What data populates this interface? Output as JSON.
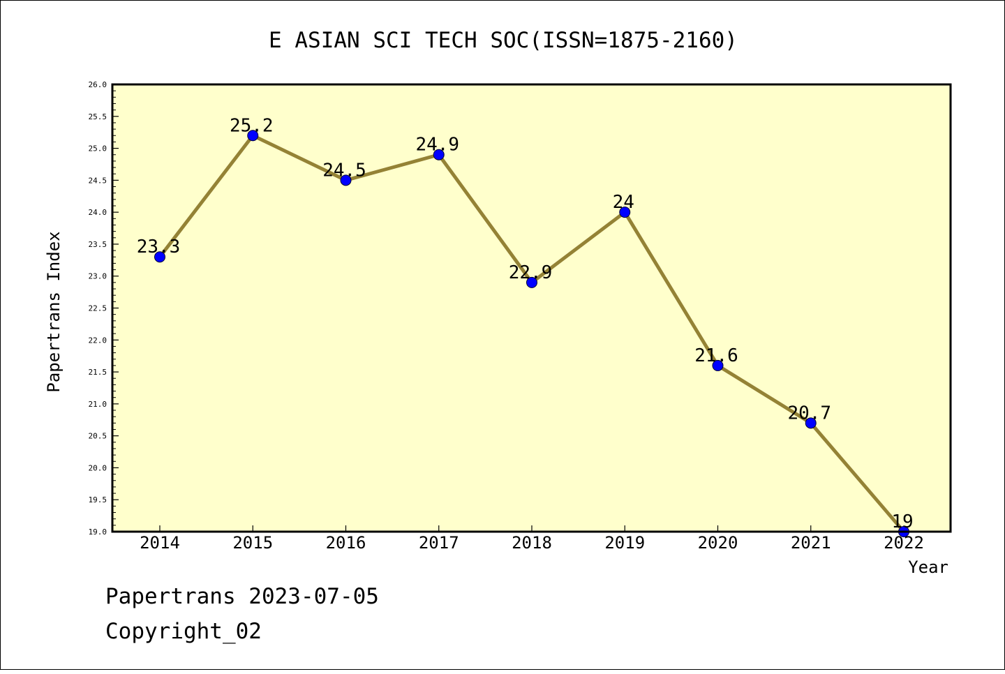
{
  "colors": {
    "plot_background": "#ffffcc",
    "line": "#948235",
    "marker": "#0000ff",
    "axis": "#000000",
    "page_background": "#ffffff"
  },
  "chart_data": {
    "type": "line",
    "title": "E ASIAN SCI TECH SOC(ISSN=1875-2160)",
    "xlabel": "Year",
    "ylabel": "Papertrans Index",
    "categories": [
      "2014",
      "2015",
      "2016",
      "2017",
      "2018",
      "2019",
      "2020",
      "2021",
      "2022"
    ],
    "series": [
      {
        "values": [
          23.3,
          25.2,
          24.5,
          24.9,
          22.9,
          24.0,
          21.6,
          20.7,
          19.0
        ],
        "data_labels": [
          "23.3",
          "25.2",
          "24.5",
          "24.9",
          "22.9",
          "24",
          "21.6",
          "20.7",
          "19"
        ]
      }
    ],
    "ylim": [
      19.0,
      26.0
    ],
    "yticks": [
      "19.0",
      "19.5",
      "20.0",
      "20.5",
      "21.0",
      "21.5",
      "22.0",
      "22.5",
      "23.0",
      "23.5",
      "24.0",
      "24.5",
      "25.0",
      "25.5",
      "26.0"
    ],
    "grid": false,
    "legend": "none"
  },
  "footer": {
    "line1": "Papertrans 2023-07-05",
    "line2": "Copyright_02"
  }
}
